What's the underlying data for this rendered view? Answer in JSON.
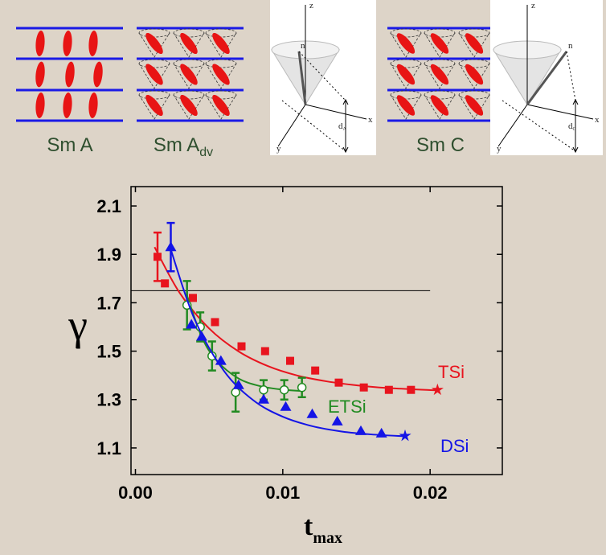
{
  "diagrams": {
    "sm_a": "Sm A",
    "sm_adv": {
      "text": "Sm A",
      "sub": "dv"
    },
    "sm_c": "Sm C",
    "cone_a": {
      "z": "z",
      "n": "n",
      "x": "x",
      "y": "y",
      "d": "d",
      "d_sub": "A"
    },
    "cone_c": {
      "z": "z",
      "n": "n",
      "x": "x",
      "y": "y",
      "d": "d",
      "d_sub": "C"
    }
  },
  "chart_data": {
    "type": "scatter",
    "y_label": "γ",
    "x_label": {
      "text": "t",
      "sub": "max"
    },
    "xlim": [
      -0.0003,
      0.0249
    ],
    "ylim": [
      0.99,
      2.18
    ],
    "xticks": [
      {
        "value": 0,
        "label": "0.00"
      },
      {
        "value": 0.01,
        "label": "0.01"
      },
      {
        "value": 0.02,
        "label": "0.02"
      }
    ],
    "yticks": [
      1.1,
      1.3,
      1.5,
      1.7,
      1.9,
      2.1
    ],
    "reference_line": {
      "y": 1.75,
      "x_end": 0.02
    },
    "series": [
      {
        "name": "TSi",
        "color": "#e8141e",
        "marker": "square",
        "end_marker": "star",
        "x": [
          0.0015,
          0.002,
          0.0039,
          0.0054,
          0.0072,
          0.0088,
          0.0105,
          0.0122,
          0.0138,
          0.0155,
          0.0172,
          0.0187,
          0.0205
        ],
        "values": [
          1.89,
          1.78,
          1.72,
          1.62,
          1.52,
          1.5,
          1.46,
          1.42,
          1.37,
          1.35,
          1.34,
          1.34,
          1.34
        ],
        "errors": [
          0.1,
          null,
          null,
          null,
          null,
          null,
          null,
          null,
          null,
          null,
          null,
          null,
          null
        ],
        "fit": {
          "x": [
            0.0013,
            0.003,
            0.005,
            0.007,
            0.009,
            0.011,
            0.013,
            0.015,
            0.017,
            0.0205
          ],
          "y": [
            1.93,
            1.741,
            1.594,
            1.499,
            1.438,
            1.399,
            1.375,
            1.359,
            1.348,
            1.338
          ]
        }
      },
      {
        "name": "ETSi",
        "color": "#228b22",
        "marker": "circle",
        "x": [
          0.0035,
          0.0044,
          0.0052,
          0.0068,
          0.0087,
          0.0101,
          0.0113
        ],
        "values": [
          1.69,
          1.6,
          1.48,
          1.33,
          1.34,
          1.34,
          1.35
        ],
        "errors": [
          0.1,
          0.06,
          0.06,
          0.08,
          0.04,
          0.04,
          0.04
        ],
        "fit": {
          "x": [
            0.0035,
            0.0045,
            0.0055,
            0.007,
            0.0085,
            0.01,
            0.0113
          ],
          "y": [
            1.73,
            1.559,
            1.462,
            1.387,
            1.355,
            1.341,
            1.335
          ]
        }
      },
      {
        "name": "DSi",
        "color": "#1414e6",
        "marker": "triangle",
        "end_marker": "star",
        "x": [
          0.0024,
          0.0038,
          0.0045,
          0.0058,
          0.007,
          0.0087,
          0.0102,
          0.012,
          0.0137,
          0.0153,
          0.0167,
          0.0183
        ],
        "values": [
          1.93,
          1.61,
          1.56,
          1.46,
          1.36,
          1.3,
          1.27,
          1.24,
          1.21,
          1.17,
          1.16,
          1.15
        ],
        "errors": [
          0.1,
          null,
          null,
          null,
          null,
          null,
          null,
          null,
          null,
          null,
          null,
          null
        ],
        "fit": {
          "x": [
            0.0024,
            0.004,
            0.006,
            0.008,
            0.01,
            0.012,
            0.014,
            0.016,
            0.0183
          ],
          "y": [
            1.92,
            1.634,
            1.419,
            1.297,
            1.229,
            1.19,
            1.168,
            1.156,
            1.148
          ]
        }
      }
    ]
  }
}
